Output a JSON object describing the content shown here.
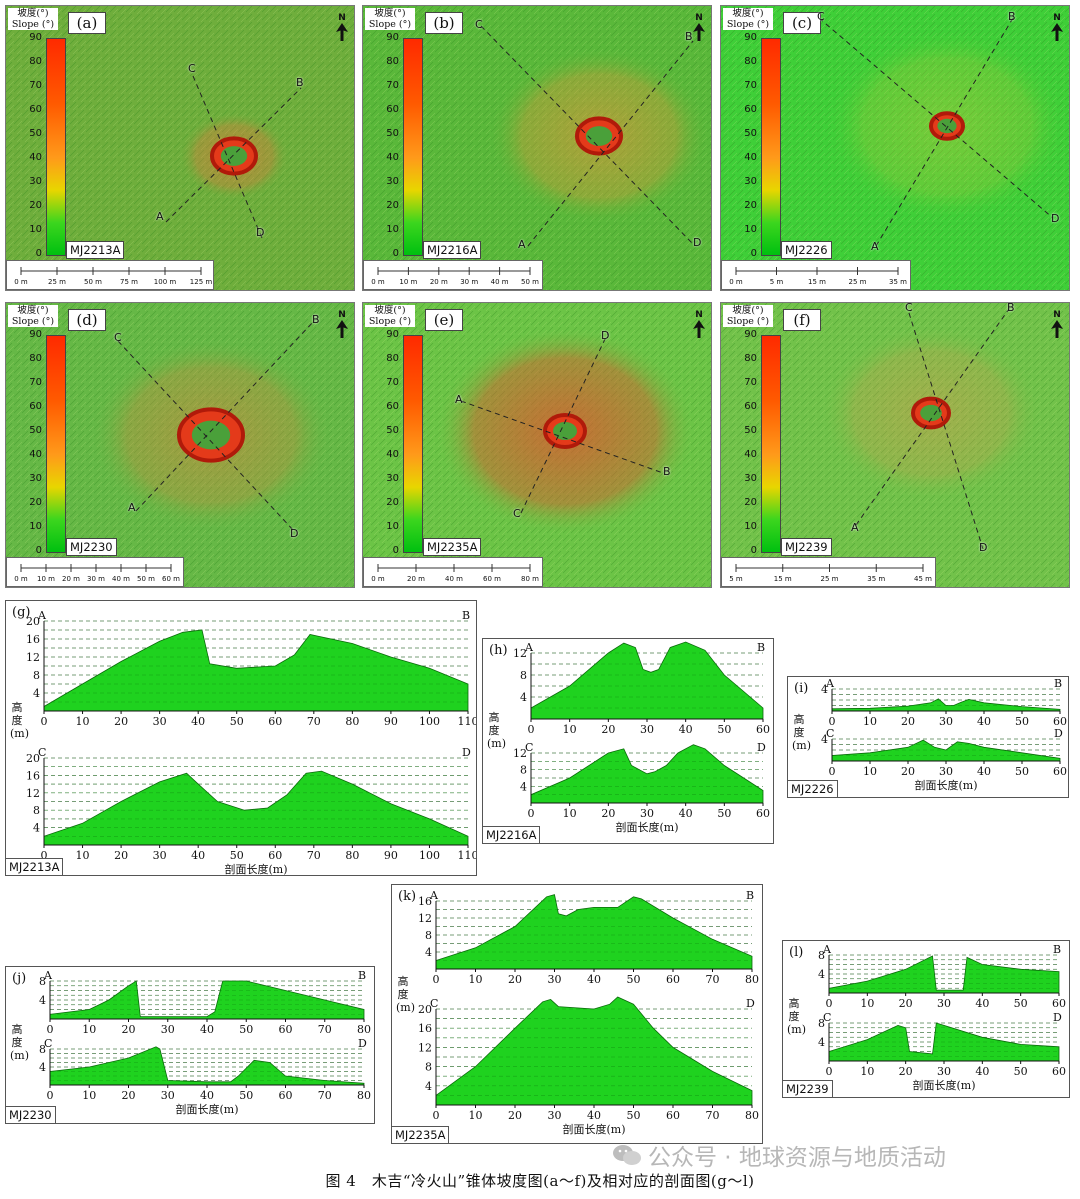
{
  "slope_legend": {
    "title_cn": "坡度(°)",
    "title_en": "Slope (°)",
    "ticks": [
      "90",
      "80",
      "70",
      "60",
      "50",
      "40",
      "30",
      "20",
      "10",
      "0"
    ],
    "north": "N"
  },
  "panels": [
    {
      "label": "(a)",
      "site": "MJ2213A",
      "scale": [
        "0 m",
        "25 m",
        "50 m",
        "75 m",
        "100 m",
        "125 m"
      ],
      "points": [
        "A",
        "B",
        "C",
        "D"
      ],
      "colors": {
        "bg": "#6fae3c",
        "cone": "#e8763a"
      }
    },
    {
      "label": "(b)",
      "site": "MJ2216A",
      "scale": [
        "0 m",
        "10 m",
        "20 m",
        "30 m",
        "40 m",
        "50 m"
      ],
      "points": [
        "A",
        "B",
        "C",
        "D"
      ],
      "colors": {
        "bg": "#5ab83a",
        "cone": "#e2943a"
      }
    },
    {
      "label": "(c)",
      "site": "MJ2226",
      "scale": [
        "0 m",
        "5 m",
        "15 m",
        "25 m",
        "35 m"
      ],
      "points": [
        "A",
        "B",
        "C",
        "D"
      ],
      "colors": {
        "bg": "#3fcf38",
        "cone": "#b9c63c"
      }
    },
    {
      "label": "(d)",
      "site": "MJ2230",
      "scale": [
        "0 m",
        "10 m",
        "20 m",
        "30 m",
        "40 m",
        "50 m",
        "60 m"
      ],
      "points": [
        "A",
        "B",
        "C",
        "D"
      ],
      "colors": {
        "bg": "#66b846",
        "cone": "#d3863e"
      }
    },
    {
      "label": "(e)",
      "site": "MJ2235A",
      "scale": [
        "0 m",
        "20 m",
        "40 m",
        "60 m",
        "80 m"
      ],
      "points": [
        "A",
        "B",
        "C",
        "D"
      ],
      "colors": {
        "bg": "#6cc446",
        "cone": "#e1542e"
      }
    },
    {
      "label": "(f)",
      "site": "MJ2239",
      "scale": [
        "5 m",
        "15 m",
        "25 m",
        "35 m",
        "45 m"
      ],
      "points": [
        "A",
        "B",
        "C",
        "D"
      ],
      "colors": {
        "bg": "#72c24a",
        "cone": "#d99a50"
      }
    }
  ],
  "profiles_text": {
    "ylabel": "高度(m)",
    "xlabel": "剖面长度(m)"
  },
  "chart_data": [
    {
      "type": "area",
      "label": "(g)",
      "site": "MJ2213A",
      "profiles": [
        {
          "start": "A",
          "end": "B",
          "x": [
            0,
            10,
            20,
            30,
            36,
            41,
            43,
            50,
            60,
            65,
            69,
            80,
            90,
            100,
            110
          ],
          "y": [
            1,
            6,
            11,
            15.5,
            17.5,
            18,
            10.5,
            9.5,
            10,
            12.5,
            17,
            15,
            12,
            9.5,
            6
          ],
          "yticks": [
            4,
            8,
            12,
            16,
            20
          ]
        },
        {
          "start": "C",
          "end": "D",
          "x": [
            0,
            10,
            20,
            30,
            37,
            40,
            45,
            52,
            58,
            63,
            68,
            72,
            80,
            90,
            100,
            110
          ],
          "y": [
            2,
            5,
            10,
            14.5,
            16.5,
            14,
            10,
            8,
            8.5,
            11.5,
            16.5,
            17,
            14,
            9.5,
            6,
            2
          ],
          "yticks": [
            4,
            8,
            12,
            16,
            20
          ]
        }
      ],
      "xticks": [
        0,
        10,
        20,
        30,
        40,
        50,
        60,
        70,
        80,
        90,
        100,
        110
      ]
    },
    {
      "type": "area",
      "label": "(h)",
      "site": "MJ2216A",
      "profiles": [
        {
          "start": "A",
          "end": "B",
          "x": [
            0,
            10,
            20,
            24,
            27,
            29,
            31,
            33,
            36,
            40,
            45,
            50,
            55,
            60
          ],
          "y": [
            2,
            6,
            12,
            13.8,
            13,
            9,
            8.5,
            9,
            13,
            14,
            12.5,
            8,
            5,
            2
          ],
          "yticks": [
            4,
            8,
            12
          ]
        },
        {
          "start": "C",
          "end": "D",
          "x": [
            0,
            10,
            20,
            24,
            26,
            28,
            30,
            32,
            35,
            38,
            42,
            45,
            50,
            55,
            60
          ],
          "y": [
            2,
            6,
            12,
            13,
            9,
            8,
            7,
            7.5,
            9,
            12,
            14,
            13,
            9,
            6,
            3
          ],
          "yticks": [
            4,
            8,
            12
          ]
        }
      ],
      "xticks": [
        0,
        10,
        20,
        30,
        40,
        50,
        60
      ]
    },
    {
      "type": "area",
      "label": "(i)",
      "site": "MJ2226",
      "profiles": [
        {
          "start": "A",
          "end": "B",
          "x": [
            0,
            10,
            20,
            26,
            28,
            30,
            32,
            34,
            36,
            40,
            50,
            60
          ],
          "y": [
            0.4,
            0.5,
            0.9,
            1.5,
            2.2,
            1,
            1,
            1.6,
            2.1,
            1.5,
            0.8,
            0.3
          ],
          "yticks": [
            4
          ]
        },
        {
          "start": "C",
          "end": "D",
          "x": [
            0,
            10,
            20,
            24,
            27,
            30,
            33,
            36,
            40,
            50,
            60
          ],
          "y": [
            1,
            1.5,
            2.5,
            3.8,
            2.5,
            2,
            3.5,
            3.2,
            2.5,
            1.5,
            0.5
          ],
          "yticks": [
            4
          ]
        }
      ],
      "xticks": [
        0,
        10,
        20,
        30,
        40,
        50,
        60
      ]
    },
    {
      "type": "area",
      "label": "(j)",
      "site": "MJ2230",
      "profiles": [
        {
          "start": "A",
          "end": "B",
          "x": [
            0,
            10,
            15,
            20,
            22,
            23,
            30,
            40,
            42,
            44,
            50,
            60,
            70,
            80
          ],
          "y": [
            1,
            2,
            4,
            7,
            8,
            0.5,
            0.5,
            0.5,
            1.5,
            8,
            8,
            6,
            4,
            2
          ],
          "yticks": [
            4,
            8
          ]
        },
        {
          "start": "C",
          "end": "D",
          "x": [
            0,
            10,
            20,
            27,
            28,
            30,
            40,
            46,
            48,
            52,
            56,
            60,
            70,
            80
          ],
          "y": [
            3,
            4,
            6,
            8.5,
            8,
            1,
            0.7,
            0.7,
            2,
            5.5,
            5,
            2,
            1,
            0.4
          ],
          "yticks": [
            4,
            8
          ]
        }
      ],
      "xticks": [
        0,
        10,
        20,
        30,
        40,
        50,
        60,
        70,
        80
      ]
    },
    {
      "type": "area",
      "label": "(k)",
      "site": "MJ2235A",
      "profiles": [
        {
          "start": "A",
          "end": "B",
          "x": [
            0,
            10,
            20,
            28,
            30,
            31,
            33,
            36,
            40,
            46,
            50,
            52,
            60,
            70,
            80
          ],
          "y": [
            2,
            5,
            10,
            17,
            17.5,
            13,
            12.5,
            14,
            14.5,
            14.5,
            17,
            16.5,
            12,
            7,
            3
          ],
          "yticks": [
            4,
            8,
            12,
            16
          ]
        },
        {
          "start": "C",
          "end": "D",
          "x": [
            0,
            10,
            20,
            27,
            29,
            31,
            40,
            44,
            46,
            50,
            55,
            60,
            70,
            80
          ],
          "y": [
            2,
            8,
            16,
            21.5,
            22,
            20.5,
            20,
            21,
            22.5,
            21,
            16,
            12,
            7,
            3
          ],
          "yticks": [
            4,
            8,
            12,
            16,
            20
          ]
        }
      ],
      "xticks": [
        0,
        10,
        20,
        30,
        40,
        50,
        60,
        70,
        80
      ]
    },
    {
      "type": "area",
      "label": "(l)",
      "site": "MJ2239",
      "profiles": [
        {
          "start": "A",
          "end": "B",
          "x": [
            0,
            10,
            20,
            27,
            28,
            35,
            36,
            40,
            50,
            60
          ],
          "y": [
            1,
            2.5,
            5,
            7.8,
            0.6,
            0.6,
            7.5,
            6,
            5,
            4.5
          ],
          "yticks": [
            4,
            8
          ]
        },
        {
          "start": "C",
          "end": "D",
          "x": [
            0,
            10,
            18,
            20,
            21,
            27,
            28,
            30,
            40,
            50,
            60
          ],
          "y": [
            2,
            4.5,
            7.5,
            7,
            2,
            1.5,
            8,
            7.5,
            5,
            3.5,
            3
          ],
          "yticks": [
            4,
            8
          ]
        }
      ],
      "xticks": [
        0,
        10,
        20,
        30,
        40,
        50,
        60
      ]
    }
  ],
  "caption": "图 4　木吉“冷火山”锥体坡度图(a～f)及相对应的剖面图(g～l)",
  "watermark": "公众号 · 地球资源与地质活动"
}
